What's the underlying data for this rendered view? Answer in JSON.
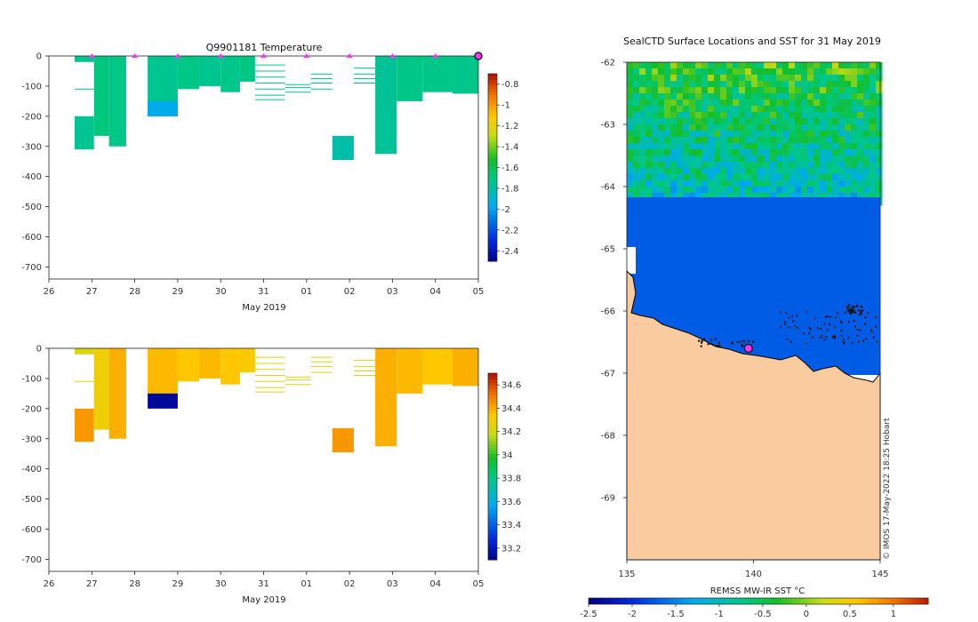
{
  "colors": {
    "land": "#fbcba0",
    "coast": "#000000",
    "marker": "#ff33ff",
    "marker_edge": "#7a007a",
    "seal_pt": "#111111"
  },
  "chart_data": [
    {
      "id": "temperature",
      "type": "heatmap",
      "title": "Q9901181  Temperature",
      "xlabel": "May 2019",
      "ylabel": "",
      "x_ticks": [
        "26",
        "27",
        "28",
        "29",
        "30",
        "31",
        "01",
        "02",
        "03",
        "04",
        "05"
      ],
      "y_ticks": [
        0,
        -100,
        -200,
        -300,
        -400,
        -500,
        -600,
        -700
      ],
      "ylim": [
        -740,
        0
      ],
      "colorbar": {
        "ticks": [
          "-0.8",
          "-1",
          "-1.2",
          "-1.4",
          "-1.6",
          "-1.8",
          "-2",
          "-2.2",
          "-2.4"
        ],
        "min": -2.5,
        "max": -0.7
      },
      "profile_markers_day": [
        1,
        2,
        3,
        4,
        5,
        6,
        7,
        8,
        9,
        10
      ],
      "end_marker_day": 10,
      "profiles": [
        {
          "x0": 0.6,
          "x1": 1.05,
          "depth": 20,
          "value": -1.72
        },
        {
          "x0": 0.6,
          "x1": 1.05,
          "depth": 310,
          "value": -1.73,
          "top": 200
        },
        {
          "x0": 1.05,
          "x1": 1.4,
          "depth": 265,
          "value": -1.68
        },
        {
          "x0": 1.4,
          "x1": 1.8,
          "depth": 300,
          "value": -1.7
        },
        {
          "x0": 2.3,
          "x1": 3.0,
          "depth": 200,
          "value": -1.72
        },
        {
          "x0": 3.0,
          "x1": 3.5,
          "depth": 110,
          "value": -1.7
        },
        {
          "x0": 3.5,
          "x1": 4.0,
          "depth": 100,
          "value": -1.72
        },
        {
          "x0": 4.0,
          "x1": 4.45,
          "depth": 120,
          "value": -1.71
        },
        {
          "x0": 4.45,
          "x1": 4.8,
          "depth": 85,
          "value": -1.69
        },
        {
          "x0": 6.6,
          "x1": 7.1,
          "depth": 345,
          "value": -1.78,
          "top": 265
        },
        {
          "x0": 7.6,
          "x1": 8.1,
          "depth": 325,
          "value": -1.74
        },
        {
          "x0": 8.1,
          "x1": 8.7,
          "depth": 150,
          "value": -1.7
        },
        {
          "x0": 8.7,
          "x1": 9.4,
          "depth": 120,
          "value": -1.7
        },
        {
          "x0": 9.4,
          "x1": 10.0,
          "depth": 125,
          "value": -1.71
        }
      ],
      "thin_lines": [
        {
          "x0": 0.6,
          "x1": 1.05,
          "depth": 110
        },
        {
          "x0": 2.3,
          "x1": 2.6,
          "depth": 40
        },
        {
          "x0": 4.8,
          "x1": 5.5,
          "depth": 30
        },
        {
          "x0": 4.8,
          "x1": 5.5,
          "depth": 50
        },
        {
          "x0": 4.8,
          "x1": 5.5,
          "depth": 70
        },
        {
          "x0": 4.8,
          "x1": 5.5,
          "depth": 90
        },
        {
          "x0": 4.8,
          "x1": 5.5,
          "depth": 110
        },
        {
          "x0": 4.8,
          "x1": 5.5,
          "depth": 130
        },
        {
          "x0": 4.8,
          "x1": 5.5,
          "depth": 145
        },
        {
          "x0": 5.5,
          "x1": 6.1,
          "depth": 95
        },
        {
          "x0": 5.5,
          "x1": 6.1,
          "depth": 105
        },
        {
          "x0": 5.5,
          "x1": 6.1,
          "depth": 120
        },
        {
          "x0": 6.1,
          "x1": 6.6,
          "depth": 60
        },
        {
          "x0": 6.1,
          "x1": 6.6,
          "depth": 75
        },
        {
          "x0": 6.1,
          "x1": 6.6,
          "depth": 90
        },
        {
          "x0": 6.1,
          "x1": 6.6,
          "depth": 110
        },
        {
          "x0": 7.1,
          "x1": 7.6,
          "depth": 40
        },
        {
          "x0": 7.1,
          "x1": 7.6,
          "depth": 60
        },
        {
          "x0": 7.1,
          "x1": 7.6,
          "depth": 75
        },
        {
          "x0": 7.1,
          "x1": 7.6,
          "depth": 90
        }
      ],
      "special_cells": [
        {
          "x0": 2.3,
          "x1": 3.0,
          "top": 150,
          "bottom": 200,
          "value": -1.95
        }
      ]
    },
    {
      "id": "salinity",
      "type": "heatmap",
      "title": "",
      "xlabel": "May 2019",
      "ylabel": "",
      "x_ticks": [
        "26",
        "27",
        "28",
        "29",
        "30",
        "31",
        "01",
        "02",
        "03",
        "04",
        "05"
      ],
      "y_ticks": [
        0,
        -100,
        -200,
        -300,
        -400,
        -500,
        -600,
        -700
      ],
      "ylim": [
        -740,
        0
      ],
      "colorbar": {
        "ticks": [
          "34.6",
          "34.4",
          "34.2",
          "34",
          "33.8",
          "33.6",
          "33.4",
          "33.2"
        ],
        "min": 33.1,
        "max": 34.7
      },
      "profiles": [
        {
          "x0": 0.6,
          "x1": 1.05,
          "depth": 20,
          "value": 34.25
        },
        {
          "x0": 0.6,
          "x1": 1.05,
          "depth": 310,
          "value": 34.45,
          "top": 200
        },
        {
          "x0": 1.05,
          "x1": 1.4,
          "depth": 270,
          "value": 34.3
        },
        {
          "x0": 1.4,
          "x1": 1.8,
          "depth": 300,
          "value": 34.4
        },
        {
          "x0": 2.3,
          "x1": 3.0,
          "depth": 155,
          "value": 34.38
        },
        {
          "x0": 3.0,
          "x1": 3.5,
          "depth": 110,
          "value": 34.35
        },
        {
          "x0": 3.5,
          "x1": 4.0,
          "depth": 100,
          "value": 34.38
        },
        {
          "x0": 4.0,
          "x1": 4.45,
          "depth": 120,
          "value": 34.35
        },
        {
          "x0": 4.45,
          "x1": 4.8,
          "depth": 80,
          "value": 34.33
        },
        {
          "x0": 6.6,
          "x1": 7.1,
          "depth": 345,
          "value": 34.45,
          "top": 265
        },
        {
          "x0": 7.6,
          "x1": 8.1,
          "depth": 325,
          "value": 34.4
        },
        {
          "x0": 8.1,
          "x1": 8.7,
          "depth": 150,
          "value": 34.38
        },
        {
          "x0": 8.7,
          "x1": 9.4,
          "depth": 120,
          "value": 34.35
        },
        {
          "x0": 9.4,
          "x1": 10.0,
          "depth": 125,
          "value": 34.4
        }
      ],
      "thin_lines": [
        {
          "x0": 0.6,
          "x1": 1.05,
          "depth": 110
        },
        {
          "x0": 2.3,
          "x1": 2.6,
          "depth": 20
        },
        {
          "x0": 4.8,
          "x1": 5.5,
          "depth": 30
        },
        {
          "x0": 4.8,
          "x1": 5.5,
          "depth": 50
        },
        {
          "x0": 4.8,
          "x1": 5.5,
          "depth": 70
        },
        {
          "x0": 4.8,
          "x1": 5.5,
          "depth": 90
        },
        {
          "x0": 4.8,
          "x1": 5.5,
          "depth": 110
        },
        {
          "x0": 4.8,
          "x1": 5.5,
          "depth": 130
        },
        {
          "x0": 4.8,
          "x1": 5.5,
          "depth": 145
        },
        {
          "x0": 5.5,
          "x1": 6.1,
          "depth": 95
        },
        {
          "x0": 5.5,
          "x1": 6.1,
          "depth": 105
        },
        {
          "x0": 5.5,
          "x1": 6.1,
          "depth": 120
        },
        {
          "x0": 6.1,
          "x1": 6.6,
          "depth": 30
        },
        {
          "x0": 6.1,
          "x1": 6.6,
          "depth": 45
        },
        {
          "x0": 6.1,
          "x1": 6.6,
          "depth": 60
        },
        {
          "x0": 6.1,
          "x1": 6.6,
          "depth": 80
        },
        {
          "x0": 7.1,
          "x1": 7.6,
          "depth": 40
        },
        {
          "x0": 7.1,
          "x1": 7.6,
          "depth": 60
        },
        {
          "x0": 7.1,
          "x1": 7.6,
          "depth": 75
        },
        {
          "x0": 7.1,
          "x1": 7.6,
          "depth": 90
        }
      ],
      "special_cells": [
        {
          "x0": 2.3,
          "x1": 3.0,
          "top": 150,
          "bottom": 200,
          "value": 33.15
        }
      ]
    },
    {
      "id": "map",
      "type": "heatmap",
      "title": "SealCTD Surface Locations and SST for 31 May 2019",
      "x_ticks": [
        "135",
        "140",
        "145"
      ],
      "xlim": [
        135,
        145
      ],
      "y_ticks": [
        "-62",
        "-63",
        "-64",
        "-65",
        "-66",
        "-67",
        "-68",
        "-69"
      ],
      "ylim": [
        -70,
        -62
      ],
      "colorbar": {
        "label": "REMSS MW-IR SST °C",
        "ticks": [
          "-2.5",
          "-2",
          "-1.5",
          "-1",
          "-0.5",
          "0",
          "0.5",
          "1"
        ],
        "min": -2.5,
        "max": 1.4
      },
      "sst_north_value": -1.0,
      "sst_south_value": -1.75,
      "current_position": {
        "lon": 139.8,
        "lat": -66.6
      }
    }
  ],
  "credit": "© IMOS 17-May-2022 18:25 Hobart"
}
